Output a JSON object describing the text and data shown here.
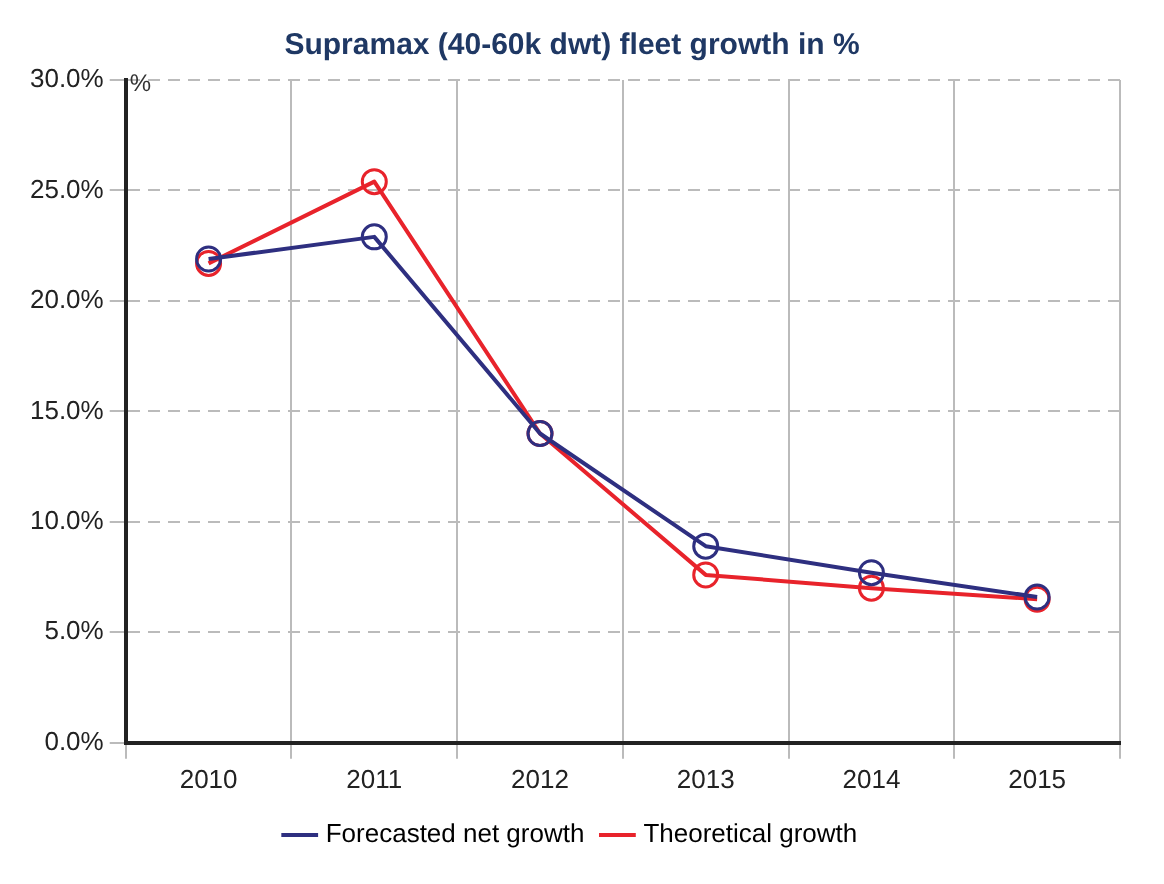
{
  "chart_data": {
    "type": "line",
    "title": "Supramax (40-60k dwt) fleet growth in %",
    "categories": [
      "2010",
      "2011",
      "2012",
      "2013",
      "2014",
      "2015"
    ],
    "series": [
      {
        "name": "Forecasted net growth",
        "color": "#2e2f80",
        "values": [
          21.9,
          22.9,
          14.0,
          8.9,
          7.7,
          6.6
        ]
      },
      {
        "name": "Theoretical growth",
        "color": "#e8232b",
        "values": [
          21.7,
          25.4,
          14.0,
          7.6,
          7.0,
          6.5
        ]
      }
    ],
    "ylim": [
      0,
      30
    ],
    "yticks": [
      {
        "value": 0,
        "label": "0.0%"
      },
      {
        "value": 5,
        "label": "5.0%"
      },
      {
        "value": 10,
        "label": "10.0%"
      },
      {
        "value": 15,
        "label": "15.0%"
      },
      {
        "value": 20,
        "label": "20.0%"
      },
      {
        "value": 25,
        "label": "25.0%"
      },
      {
        "value": 30,
        "label": "30.0%"
      }
    ],
    "annotations": [
      "%"
    ],
    "grid": true,
    "legend": "bottom",
    "marker": "circle",
    "line_style": "solid"
  }
}
